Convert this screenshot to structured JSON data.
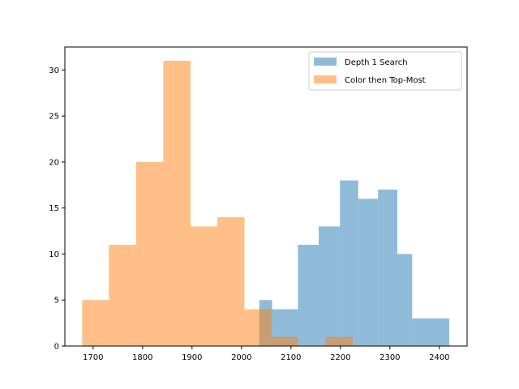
{
  "chart_data": {
    "type": "histogram",
    "title": "",
    "xlabel": "",
    "ylabel": "",
    "xlim": [
      1643,
      2456
    ],
    "ylim": [
      0,
      32.5
    ],
    "xticks": [
      1700,
      1800,
      1900,
      2000,
      2100,
      2200,
      2300,
      2400
    ],
    "yticks": [
      0,
      5,
      10,
      15,
      20,
      25,
      30
    ],
    "grid": false,
    "legend": {
      "placement": "top-right"
    },
    "series": [
      {
        "name": "Depth 1 Search",
        "color": "#1f77b4",
        "alpha": 0.5,
        "bins": [
          {
            "x0": 2036,
            "x1": 2062,
            "count": 5
          },
          {
            "x0": 2062,
            "x1": 2114,
            "count": 4
          },
          {
            "x0": 2114,
            "x1": 2156,
            "count": 11
          },
          {
            "x0": 2156,
            "x1": 2199,
            "count": 13
          },
          {
            "x0": 2199,
            "x1": 2236,
            "count": 18
          },
          {
            "x0": 2236,
            "x1": 2276,
            "count": 16
          },
          {
            "x0": 2276,
            "x1": 2315,
            "count": 17
          },
          {
            "x0": 2315,
            "x1": 2345,
            "count": 10
          },
          {
            "x0": 2345,
            "x1": 2420,
            "count": 3
          }
        ]
      },
      {
        "name": "Color then Top-Most",
        "color": "#ff7f0e",
        "alpha": 0.5,
        "bins": [
          {
            "x0": 1678,
            "x1": 1732,
            "count": 5
          },
          {
            "x0": 1732,
            "x1": 1787,
            "count": 11
          },
          {
            "x0": 1787,
            "x1": 1842,
            "count": 20
          },
          {
            "x0": 1842,
            "x1": 1897,
            "count": 31
          },
          {
            "x0": 1897,
            "x1": 1951,
            "count": 13
          },
          {
            "x0": 1951,
            "x1": 2006,
            "count": 14
          },
          {
            "x0": 2006,
            "x1": 2061,
            "count": 4
          },
          {
            "x0": 2061,
            "x1": 2115,
            "count": 1
          },
          {
            "x0": 2170,
            "x1": 2225,
            "count": 1
          }
        ]
      }
    ]
  }
}
